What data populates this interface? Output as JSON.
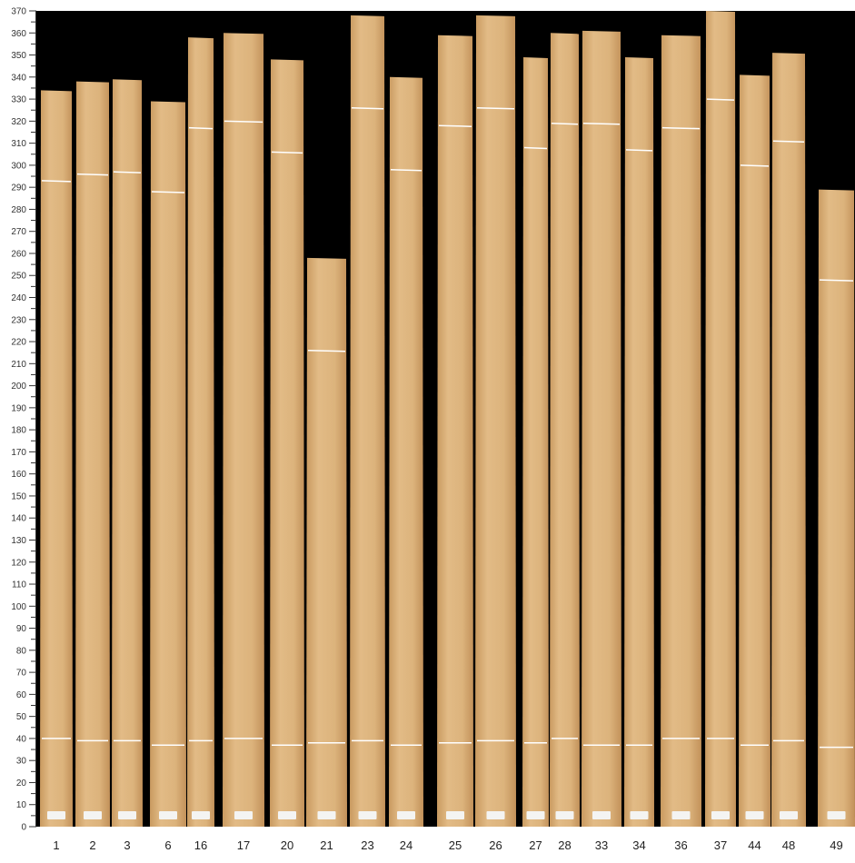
{
  "chart_data": {
    "type": "image-strips",
    "ylim": [
      0,
      370
    ],
    "y_major_step": 10,
    "y_minor_step": 5,
    "background_color": "#000000",
    "wood_color": "#d9b07a",
    "mark_color": "#ffffff",
    "samples": [
      {
        "label": "1",
        "length": 334,
        "upper_mark": 293,
        "lower_mark": 40
      },
      {
        "label": "2",
        "length": 338,
        "upper_mark": 296,
        "lower_mark": 39
      },
      {
        "label": "3",
        "length": 339,
        "upper_mark": 297,
        "lower_mark": 39
      },
      {
        "label": "6",
        "length": 329,
        "upper_mark": 288,
        "lower_mark": 37
      },
      {
        "label": "16",
        "length": 358,
        "upper_mark": 317,
        "lower_mark": 39
      },
      {
        "label": "17",
        "length": 360,
        "upper_mark": 320,
        "lower_mark": 40
      },
      {
        "label": "20",
        "length": 348,
        "upper_mark": 306,
        "lower_mark": 37
      },
      {
        "label": "21",
        "length": 258,
        "upper_mark": 216,
        "lower_mark": 38
      },
      {
        "label": "23",
        "length": 368,
        "upper_mark": 326,
        "lower_mark": 39
      },
      {
        "label": "24",
        "length": 340,
        "upper_mark": 298,
        "lower_mark": 37
      },
      {
        "label": "25",
        "length": 359,
        "upper_mark": 318,
        "lower_mark": 38
      },
      {
        "label": "26",
        "length": 368,
        "upper_mark": 326,
        "lower_mark": 39
      },
      {
        "label": "27",
        "length": 349,
        "upper_mark": 308,
        "lower_mark": 38
      },
      {
        "label": "28",
        "length": 360,
        "upper_mark": 319,
        "lower_mark": 40
      },
      {
        "label": "33",
        "length": 361,
        "upper_mark": 319,
        "lower_mark": 37
      },
      {
        "label": "34",
        "length": 349,
        "upper_mark": 307,
        "lower_mark": 37
      },
      {
        "label": "36",
        "length": 359,
        "upper_mark": 317,
        "lower_mark": 40
      },
      {
        "label": "37",
        "length": 370,
        "upper_mark": 330,
        "lower_mark": 40
      },
      {
        "label": "44",
        "length": 341,
        "upper_mark": 300,
        "lower_mark": 37
      },
      {
        "label": "48",
        "length": 351,
        "upper_mark": 311,
        "lower_mark": 39
      },
      {
        "label": "49",
        "length": 289,
        "upper_mark": 248,
        "lower_mark": 36
      }
    ]
  }
}
